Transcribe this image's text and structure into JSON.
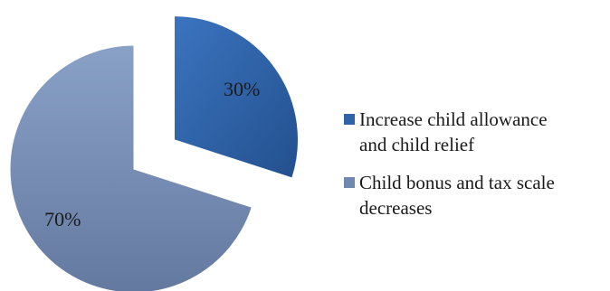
{
  "chart_data": {
    "type": "pie",
    "title": "",
    "exploded_slice": "Increase child allowance and child relief",
    "slices": [
      {
        "label": "Increase child allowance and child relief",
        "value": 30,
        "data_label": "30%",
        "color": "#2E63A8"
      },
      {
        "label": "Child bonus and tax scale decreases",
        "value": 70,
        "data_label": "70%",
        "color": "#7188B0"
      }
    ],
    "legend": {
      "position": "right",
      "items": [
        {
          "lines": [
            "Increase child allowance",
            "and child relief"
          ],
          "color": "#2E63A8"
        },
        {
          "lines": [
            "Child bonus and tax scale",
            "decreases"
          ],
          "color": "#7188B0"
        }
      ]
    }
  }
}
